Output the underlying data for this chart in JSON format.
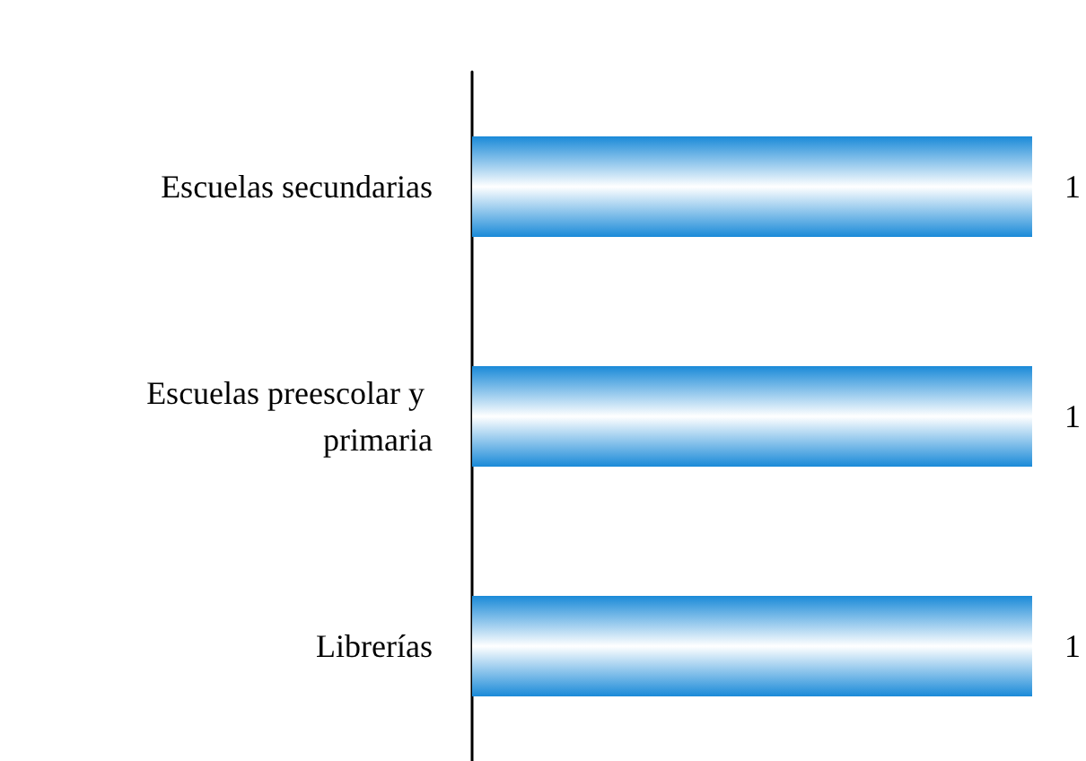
{
  "chart_data": {
    "type": "bar",
    "orientation": "horizontal",
    "categories": [
      "Escuelas secundarias",
      "Escuelas preescolar y primaria",
      "Librerías"
    ],
    "values": [
      1,
      1,
      1
    ],
    "color": "#1a8ad8",
    "data_labels": true,
    "tick_labels": "y"
  }
}
